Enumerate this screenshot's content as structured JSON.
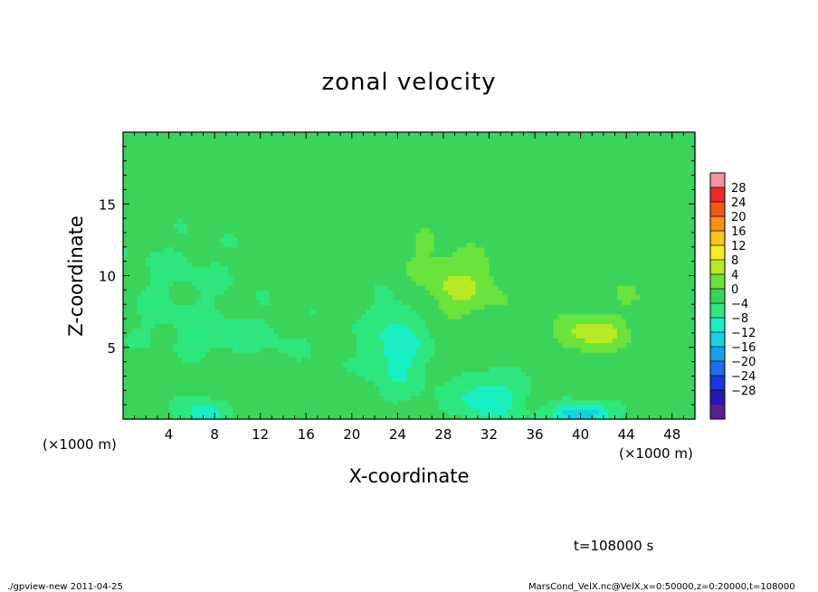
{
  "title": "zonal velocity",
  "footer": {
    "left": "./gpview-new  2011-04-25",
    "right": "MarsCond_VelX.nc@VelX,x=0:50000,z=0:20000,t=108000",
    "time": "t=108000 s"
  },
  "chart_data": {
    "type": "heatmap",
    "title": "zonal velocity",
    "xlabel": "X-coordinate",
    "ylabel": "Z-coordinate",
    "x_unit": "(×1000 m)",
    "y_unit": "(×1000 m)",
    "xlim": [
      0,
      50
    ],
    "ylim": [
      0,
      20
    ],
    "x_ticks": [
      4,
      8,
      12,
      16,
      20,
      24,
      28,
      32,
      36,
      40,
      44,
      48
    ],
    "y_ticks": [
      5,
      10,
      15
    ],
    "colorbar": {
      "levels": [
        -32,
        -28,
        -24,
        -20,
        -16,
        -12,
        -8,
        -4,
        0,
        4,
        8,
        12,
        16,
        20,
        24,
        28,
        32
      ],
      "tick_labels": [
        "28",
        "24",
        "20",
        "16",
        "12",
        "8",
        "4",
        "0",
        "−4",
        "−8",
        "−12",
        "−16",
        "−20",
        "−24",
        "−28"
      ],
      "colors": [
        "#5a1f8f",
        "#2a17b3",
        "#1d35e0",
        "#1f6cf0",
        "#16a0f2",
        "#12d2e6",
        "#18f0c4",
        "#2ee87f",
        "#3ad45a",
        "#6ae33c",
        "#b7ea24",
        "#f4ee20",
        "#f8c418",
        "#f79211",
        "#f25a12",
        "#ee2a28",
        "#f39499"
      ]
    },
    "field_features": [
      {
        "x": 29.5,
        "z": 9.3,
        "value": 7,
        "sx": 3.5,
        "sz": 2.2
      },
      {
        "x": 41,
        "z": 6,
        "value": 9,
        "sx": 3,
        "sz": 1.3
      },
      {
        "x": 24,
        "z": 5,
        "value": -8,
        "sx": 2.5,
        "sz": 3
      },
      {
        "x": 32,
        "z": 1.5,
        "value": -9,
        "sx": 3,
        "sz": 1.5
      },
      {
        "x": 40,
        "z": 0.4,
        "value": -14,
        "sx": 2.5,
        "sz": 0.7
      },
      {
        "x": 7,
        "z": 0.5,
        "value": -8,
        "sx": 2,
        "sz": 1
      },
      {
        "x": 8,
        "z": 5.5,
        "value": -3,
        "sx": 8,
        "sz": 2
      },
      {
        "x": 10,
        "z": 3,
        "value": 3,
        "sx": 3,
        "sz": 1.5
      },
      {
        "x": 3,
        "z": 4,
        "value": 2,
        "sx": 3,
        "sz": 1.5
      },
      {
        "x": 25,
        "z": 12,
        "value": 2,
        "sx": 4,
        "sz": 2
      },
      {
        "x": 45,
        "z": 9,
        "value": 2,
        "sx": 4,
        "sz": 2
      },
      {
        "x": 5,
        "z": 10,
        "value": -2,
        "sx": 6,
        "sz": 3
      }
    ]
  }
}
